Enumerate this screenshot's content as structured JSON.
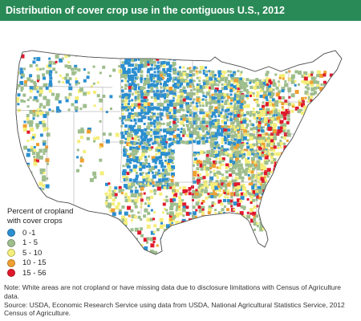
{
  "title": "Distribution of cover crop use in the contiguous U.S., 2012",
  "legend": {
    "title_line1": "Percent of cropland",
    "title_line2": "with cover crops",
    "items": [
      {
        "label": "0 -1",
        "color": "#2b8fd0"
      },
      {
        "label": "1 - 5",
        "color": "#9ebe8d"
      },
      {
        "label": "5 - 10",
        "color": "#f4ee7a"
      },
      {
        "label": "10 - 15",
        "color": "#f0a030"
      },
      {
        "label": "15 - 56",
        "color": "#e0182c"
      }
    ]
  },
  "colors": {
    "title_bar": "#2a8a57",
    "no_data": "#ffffff",
    "state_border": "#999999"
  },
  "note": "Note: White areas are not cropland or have missing data due to disclosure limitations with Census of Agriculture data.",
  "source": "Source: USDA, Economic Research Service using data from USDA, National Agricultural Statistics Service, 2012 Census of Agriculture."
}
